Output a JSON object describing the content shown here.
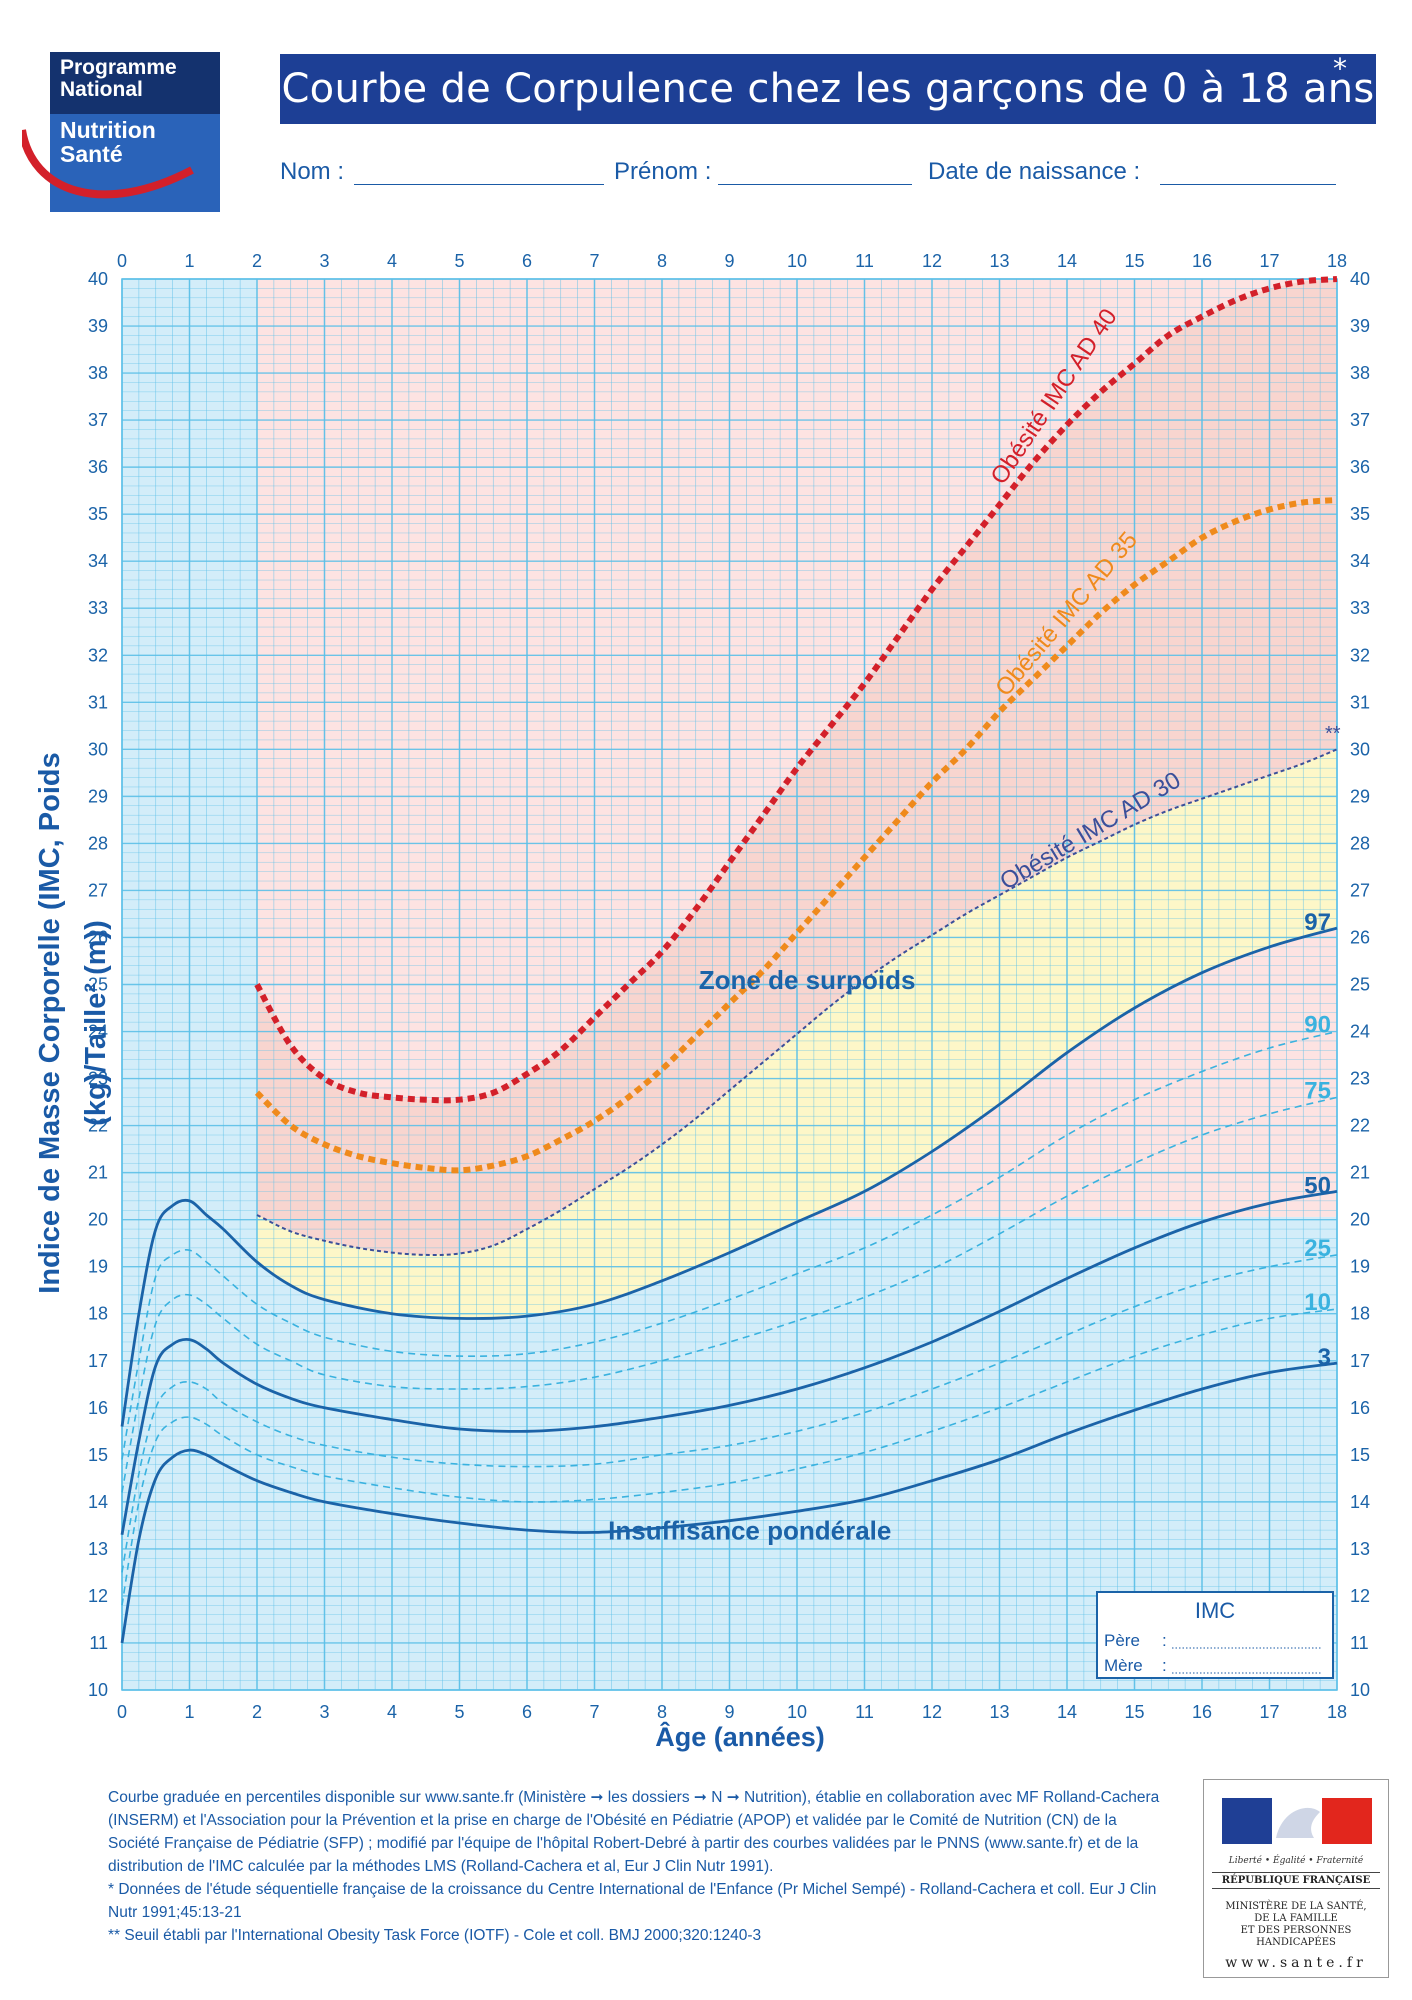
{
  "logo": {
    "line1": "Programme",
    "line2": "National",
    "line3": "Nutrition",
    "line4": "Santé"
  },
  "title": "Courbe de Corpulence chez les garçons de 0 à 18 ans",
  "title_mark": "*",
  "form": {
    "nom": "Nom :",
    "prenom": "Prénom :",
    "date": "Date de naissance :"
  },
  "imc_box": {
    "title": "IMC",
    "pere": "Père",
    "mere": "Mère",
    "sep": ":"
  },
  "colors": {
    "accent": "#1d3f95",
    "grid": "#5cc0e8",
    "zone_obese": "#f8d5cf",
    "zone_over": "#fdf7c8",
    "zone_normal": "#d3edf9",
    "ad40": "#d3202a",
    "ad35": "#ef8a1c",
    "ad30": "#3b4f9a",
    "pct_dark": "#1b63a8",
    "pct_light": "#3ab2df"
  },
  "chart_data": {
    "type": "line",
    "title": "Courbe de Corpulence chez les garçons de 0 à 18 ans",
    "xlabel": "Âge (années)",
    "ylabel": "Indice de Masse Corporelle (IMC, Poids (kg)/Taille² (m))",
    "xlim": [
      0,
      18
    ],
    "ylim": [
      10,
      40
    ],
    "x_ticks": [
      0,
      1,
      2,
      3,
      4,
      5,
      6,
      7,
      8,
      9,
      10,
      11,
      12,
      13,
      14,
      15,
      16,
      17,
      18
    ],
    "y_ticks": [
      10,
      11,
      12,
      13,
      14,
      15,
      16,
      17,
      18,
      19,
      20,
      21,
      22,
      23,
      24,
      25,
      26,
      27,
      28,
      29,
      30,
      31,
      32,
      33,
      34,
      35,
      36,
      37,
      38,
      39,
      40
    ],
    "grid": true,
    "zones": {
      "overweight": "Zone de surpoids",
      "underweight": "Insuffisance pondérale"
    },
    "series": [
      {
        "name": "Obésité IMC AD 40",
        "style": "red-dotted",
        "x": [
          2,
          2.5,
          3,
          3.5,
          4,
          4.5,
          5,
          5.5,
          6,
          6.5,
          7,
          7.5,
          8,
          8.5,
          9,
          9.5,
          10,
          10.5,
          11,
          11.5,
          12,
          12.5,
          13,
          13.5,
          14,
          14.5,
          15,
          15.5,
          16,
          16.5,
          17,
          17.5,
          18
        ],
        "y": [
          25.0,
          23.7,
          23.0,
          22.7,
          22.6,
          22.55,
          22.55,
          22.7,
          23.1,
          23.6,
          24.3,
          25.0,
          25.7,
          26.6,
          27.6,
          28.6,
          29.6,
          30.5,
          31.4,
          32.4,
          33.4,
          34.3,
          35.2,
          36.1,
          36.9,
          37.6,
          38.2,
          38.8,
          39.2,
          39.55,
          39.8,
          39.95,
          40.0
        ]
      },
      {
        "name": "Obésité IMC AD 35",
        "style": "orange-dotted",
        "x": [
          2,
          2.5,
          3,
          3.5,
          4,
          4.5,
          5,
          5.5,
          6,
          6.5,
          7,
          7.5,
          8,
          8.5,
          9,
          9.5,
          10,
          10.5,
          11,
          11.5,
          12,
          12.5,
          13,
          13.5,
          14,
          14.5,
          15,
          15.5,
          16,
          16.5,
          17,
          17.5,
          18
        ],
        "y": [
          22.7,
          22.0,
          21.6,
          21.35,
          21.2,
          21.1,
          21.05,
          21.15,
          21.35,
          21.7,
          22.1,
          22.6,
          23.2,
          23.9,
          24.6,
          25.3,
          26.1,
          26.9,
          27.7,
          28.5,
          29.3,
          30.0,
          30.8,
          31.5,
          32.2,
          32.9,
          33.5,
          34.0,
          34.5,
          34.85,
          35.1,
          35.25,
          35.3
        ]
      },
      {
        "name": "Obésité IMC AD 30",
        "style": "navy-dashed",
        "x": [
          2,
          2.5,
          3,
          3.5,
          4,
          4.5,
          5,
          5.5,
          6,
          6.5,
          7,
          7.5,
          8,
          8.5,
          9,
          9.5,
          10,
          10.5,
          11,
          11.5,
          12,
          12.5,
          13,
          13.5,
          14,
          14.5,
          15,
          15.5,
          16,
          16.5,
          17,
          17.5,
          18
        ],
        "y": [
          20.1,
          19.75,
          19.55,
          19.4,
          19.3,
          19.25,
          19.28,
          19.45,
          19.8,
          20.2,
          20.65,
          21.1,
          21.6,
          22.15,
          22.75,
          23.35,
          23.95,
          24.55,
          25.1,
          25.6,
          26.05,
          26.5,
          26.9,
          27.3,
          27.7,
          28.05,
          28.4,
          28.7,
          28.95,
          29.2,
          29.45,
          29.7,
          30.0
        ]
      },
      {
        "name": "97",
        "style": "solid",
        "x": [
          0,
          0.25,
          0.5,
          0.75,
          1,
          1.25,
          1.5,
          2,
          2.5,
          3,
          4,
          5,
          6,
          7,
          8,
          9,
          10,
          11,
          12,
          13,
          14,
          15,
          16,
          17,
          18
        ],
        "y": [
          15.6,
          18.0,
          19.8,
          20.3,
          20.4,
          20.1,
          19.8,
          19.1,
          18.6,
          18.3,
          18.0,
          17.9,
          17.95,
          18.2,
          18.7,
          19.3,
          19.95,
          20.6,
          21.45,
          22.45,
          23.55,
          24.5,
          25.25,
          25.8,
          26.2
        ]
      },
      {
        "name": "90",
        "style": "dashed",
        "x": [
          0,
          0.25,
          0.5,
          0.75,
          1,
          1.25,
          1.5,
          2,
          2.5,
          3,
          4,
          5,
          6,
          7,
          8,
          9,
          10,
          11,
          12,
          13,
          14,
          15,
          16,
          17,
          18
        ],
        "y": [
          14.9,
          17.0,
          18.8,
          19.25,
          19.35,
          19.1,
          18.8,
          18.2,
          17.8,
          17.5,
          17.2,
          17.1,
          17.15,
          17.4,
          17.8,
          18.3,
          18.85,
          19.4,
          20.1,
          20.9,
          21.8,
          22.55,
          23.15,
          23.65,
          24.0
        ]
      },
      {
        "name": "75",
        "style": "dashed",
        "x": [
          0,
          0.25,
          0.5,
          0.75,
          1,
          1.25,
          1.5,
          2,
          2.5,
          3,
          4,
          5,
          6,
          7,
          8,
          9,
          10,
          11,
          12,
          13,
          14,
          15,
          16,
          17,
          18
        ],
        "y": [
          14.2,
          16.2,
          17.8,
          18.3,
          18.4,
          18.2,
          17.9,
          17.35,
          17.0,
          16.7,
          16.45,
          16.4,
          16.45,
          16.65,
          17.0,
          17.4,
          17.85,
          18.35,
          18.95,
          19.7,
          20.5,
          21.2,
          21.8,
          22.25,
          22.6
        ]
      },
      {
        "name": "50",
        "style": "solid",
        "x": [
          0,
          0.25,
          0.5,
          0.75,
          1,
          1.25,
          1.5,
          2,
          2.5,
          3,
          4,
          5,
          6,
          7,
          8,
          9,
          10,
          11,
          12,
          13,
          14,
          15,
          16,
          17,
          18
        ],
        "y": [
          13.3,
          15.3,
          16.9,
          17.35,
          17.45,
          17.25,
          16.95,
          16.5,
          16.2,
          16.0,
          15.75,
          15.55,
          15.5,
          15.6,
          15.8,
          16.05,
          16.4,
          16.85,
          17.4,
          18.05,
          18.75,
          19.4,
          19.95,
          20.35,
          20.6
        ]
      },
      {
        "name": "25",
        "style": "dashed",
        "x": [
          0,
          0.25,
          0.5,
          0.75,
          1,
          1.25,
          1.5,
          2,
          2.5,
          3,
          4,
          5,
          6,
          7,
          8,
          9,
          10,
          11,
          12,
          13,
          14,
          15,
          16,
          17,
          18
        ],
        "y": [
          12.5,
          14.6,
          16.0,
          16.45,
          16.55,
          16.4,
          16.1,
          15.7,
          15.4,
          15.2,
          14.95,
          14.8,
          14.75,
          14.8,
          15.0,
          15.2,
          15.5,
          15.9,
          16.4,
          16.95,
          17.55,
          18.15,
          18.65,
          19.0,
          19.25
        ]
      },
      {
        "name": "10",
        "style": "dashed",
        "x": [
          0,
          0.25,
          0.5,
          0.75,
          1,
          1.25,
          1.5,
          2,
          2.5,
          3,
          4,
          5,
          6,
          7,
          8,
          9,
          10,
          11,
          12,
          13,
          14,
          15,
          16,
          17,
          18
        ],
        "y": [
          11.8,
          14.0,
          15.3,
          15.7,
          15.8,
          15.65,
          15.4,
          15.0,
          14.75,
          14.55,
          14.3,
          14.1,
          14.0,
          14.05,
          14.2,
          14.4,
          14.7,
          15.05,
          15.5,
          16.0,
          16.55,
          17.1,
          17.55,
          17.9,
          18.1
        ]
      },
      {
        "name": "3",
        "style": "solid",
        "x": [
          0,
          0.25,
          0.5,
          0.75,
          1,
          1.25,
          1.5,
          2,
          2.5,
          3,
          4,
          5,
          6,
          7,
          8,
          9,
          10,
          11,
          12,
          13,
          14,
          15,
          16,
          17,
          18
        ],
        "y": [
          11.0,
          13.2,
          14.5,
          14.95,
          15.1,
          15.0,
          14.8,
          14.45,
          14.2,
          14.0,
          13.75,
          13.55,
          13.4,
          13.35,
          13.45,
          13.6,
          13.8,
          14.05,
          14.45,
          14.9,
          15.45,
          15.95,
          16.4,
          16.75,
          16.95
        ]
      }
    ],
    "curve_labels": {
      "ad40": "Obésité IMC AD 40",
      "ad35": "Obésité IMC AD 35",
      "ad30": "Obésité IMC AD 30",
      "iotf_mark": "**"
    }
  },
  "axis_title_x": "Âge (années)",
  "axis_title_y": "Indice de Masse Corporelle (IMC, Poids (kg)/Taille² (m))",
  "footer": {
    "p1": "Courbe graduée en percentiles disponible sur www.sante.fr (Ministère ➞ les dossiers ➞ N ➞ Nutrition), établie en collaboration avec MF Rolland-Cachera (INSERM) et l'Association pour la Prévention et la prise en charge de l'Obésité en Pédiatrie (APOP) et validée par le Comité de Nutrition (CN) de la Société Française de Pédiatrie (SFP) ; modifié par l'équipe de l'hôpital Robert-Debré à partir des courbes validées par le PNNS (www.sante.fr) et de la distribution de l'IMC calculée par la méthodes LMS (Rolland-Cachera et al, Eur J Clin Nutr 1991).",
    "p2": "* Données de l'étude séquentielle française de la croissance du Centre International de l'Enfance (Pr Michel Sempé) - Rolland-Cachera et coll. Eur J Clin Nutr 1991;45:13-21",
    "p3": "** Seuil établi par l'International Obesity Task Force (IOTF) - Cole et coll. BMJ 2000;320:1240-3"
  },
  "republique": {
    "motto": "Liberté • Égalité • Fraternité",
    "name": "RÉPUBLIQUE FRANÇAISE",
    "ministry": [
      "MINISTÈRE DE LA SANTÉ,",
      "DE LA FAMILLE",
      "ET DES PERSONNES",
      "HANDICAPÉES"
    ],
    "web": "www.sante.fr"
  }
}
